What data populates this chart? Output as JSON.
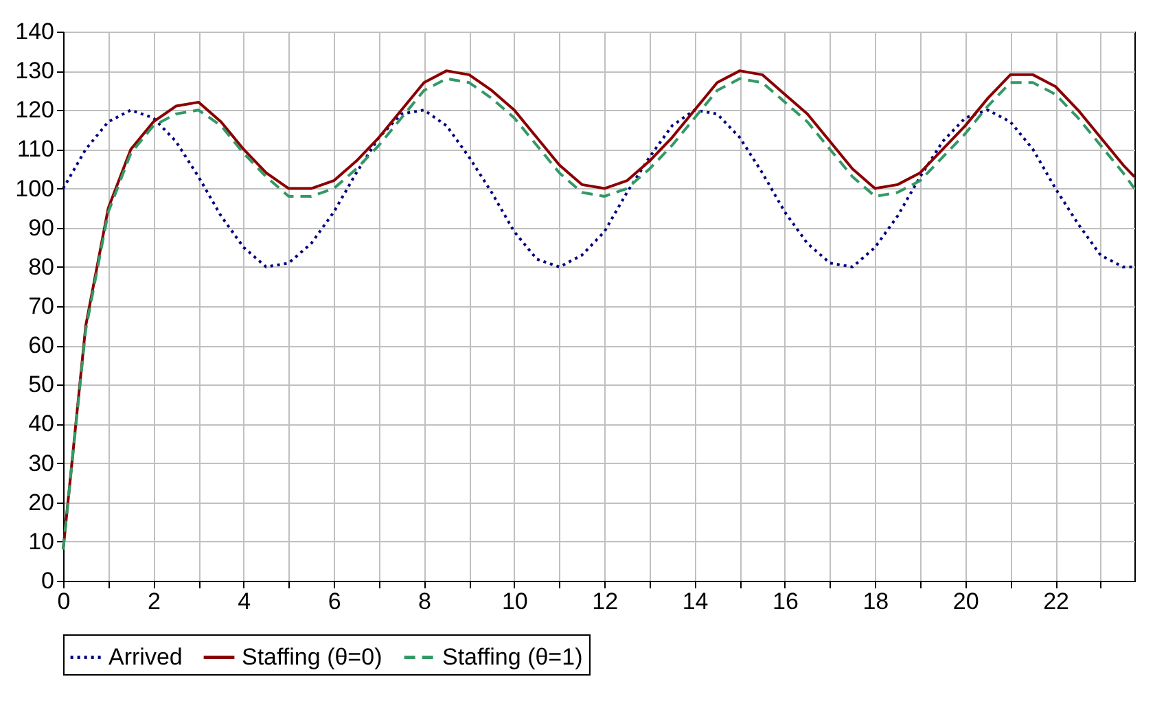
{
  "chart_data": {
    "type": "line",
    "x": [
      0,
      0.5,
      1,
      1.5,
      2,
      2.5,
      3,
      3.5,
      4,
      4.5,
      5,
      5.5,
      6,
      6.5,
      7,
      7.5,
      8,
      8.5,
      9,
      9.5,
      10,
      10.5,
      11,
      11.5,
      12,
      12.5,
      13,
      13.5,
      14,
      14.5,
      15,
      15.5,
      16,
      16.5,
      17,
      17.5,
      18,
      18.5,
      19,
      19.5,
      20,
      20.5,
      21,
      21.5,
      22,
      22.5,
      23,
      23.5,
      23.75
    ],
    "series": [
      {
        "name": "Arrived",
        "color": "#000080",
        "line_style": "dotted",
        "values": [
          100,
          110,
          117,
          120,
          118,
          112,
          103,
          93,
          85,
          80,
          81,
          86,
          94,
          104,
          113,
          119,
          120,
          116,
          108,
          99,
          89,
          82,
          80,
          83,
          89,
          99,
          108,
          116,
          120,
          119,
          113,
          104,
          94,
          86,
          81,
          80,
          85,
          93,
          103,
          112,
          118,
          120,
          117,
          110,
          100,
          91,
          83,
          80,
          80
        ]
      },
      {
        "name": "Staffing (θ=0)",
        "color": "#8b0000",
        "line_style": "solid",
        "values": [
          8,
          65,
          95,
          110,
          117,
          121,
          122,
          117,
          110,
          104,
          100,
          100,
          102,
          107,
          113,
          120,
          127,
          130,
          129,
          125,
          120,
          113,
          106,
          101,
          100,
          102,
          107,
          113,
          120,
          127,
          130,
          129,
          124,
          119,
          112,
          105,
          100,
          101,
          104,
          110,
          116,
          123,
          129,
          129,
          126,
          120,
          113,
          106,
          103
        ]
      },
      {
        "name": "Staffing (θ=1)",
        "color": "#339966",
        "line_style": "dashed",
        "values": [
          8,
          64,
          94,
          109,
          116,
          119,
          120,
          116,
          109,
          103,
          98,
          98,
          100,
          105,
          111,
          118,
          125,
          128,
          127,
          123,
          118,
          111,
          104,
          99,
          98,
          100,
          105,
          111,
          118,
          125,
          128,
          127,
          122,
          117,
          110,
          103,
          98,
          99,
          102,
          108,
          114,
          121,
          127,
          127,
          124,
          118,
          111,
          104,
          100
        ]
      }
    ],
    "xlim": [
      0,
      23.75
    ],
    "xticks": [
      0,
      {
        "value": 1,
        "label": null
      },
      2,
      {
        "value": 3,
        "label": null
      },
      4,
      {
        "value": 5,
        "label": null
      },
      6,
      {
        "value": 7,
        "label": null
      },
      8,
      {
        "value": 9,
        "label": null
      },
      10,
      {
        "value": 11,
        "label": null
      },
      12,
      {
        "value": 13,
        "label": null
      },
      14,
      {
        "value": 15,
        "label": null
      },
      16,
      {
        "value": 17,
        "label": null
      },
      18,
      {
        "value": 19,
        "label": null
      },
      20,
      {
        "value": 21,
        "label": null
      },
      22,
      {
        "value": 23,
        "label": null
      }
    ],
    "ylim": [
      0,
      140
    ],
    "yticks": [
      0,
      10,
      20,
      30,
      40,
      50,
      60,
      70,
      80,
      90,
      100,
      110,
      120,
      130,
      140
    ],
    "grid": true,
    "legend": "bottom"
  }
}
